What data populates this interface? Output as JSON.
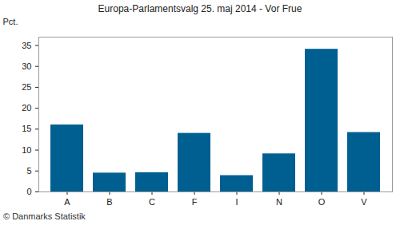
{
  "chart_data": {
    "type": "bar",
    "title": "Europa-Parlamentsvalg 25. maj 2014 - Vor Frue",
    "y_label": "Pct.",
    "caption": "© Danmarks Statistik",
    "categories": [
      "A",
      "B",
      "C",
      "F",
      "I",
      "N",
      "O",
      "V"
    ],
    "values": [
      16.0,
      4.5,
      4.6,
      14.0,
      3.9,
      9.1,
      34.1,
      14.2
    ],
    "color": "#005f91",
    "ylim": [
      0,
      37
    ],
    "yticks": [
      0,
      5,
      10,
      15,
      20,
      25,
      30,
      35
    ],
    "grid": false
  }
}
